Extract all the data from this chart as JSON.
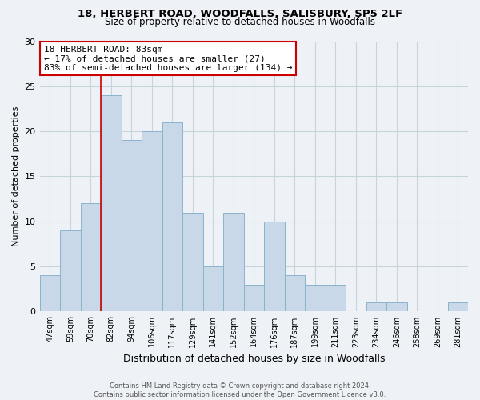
{
  "title1": "18, HERBERT ROAD, WOODFALLS, SALISBURY, SP5 2LF",
  "title2": "Size of property relative to detached houses in Woodfalls",
  "xlabel": "Distribution of detached houses by size in Woodfalls",
  "ylabel": "Number of detached properties",
  "footer1": "Contains HM Land Registry data © Crown copyright and database right 2024.",
  "footer2": "Contains public sector information licensed under the Open Government Licence v3.0.",
  "annotation_line1": "18 HERBERT ROAD: 83sqm",
  "annotation_line2": "← 17% of detached houses are smaller (27)",
  "annotation_line3": "83% of semi-detached houses are larger (134) →",
  "bar_labels": [
    "47sqm",
    "59sqm",
    "70sqm",
    "82sqm",
    "94sqm",
    "106sqm",
    "117sqm",
    "129sqm",
    "141sqm",
    "152sqm",
    "164sqm",
    "176sqm",
    "187sqm",
    "199sqm",
    "211sqm",
    "223sqm",
    "234sqm",
    "246sqm",
    "258sqm",
    "269sqm",
    "281sqm"
  ],
  "bar_values": [
    4,
    9,
    12,
    24,
    19,
    20,
    21,
    11,
    5,
    11,
    3,
    10,
    4,
    3,
    3,
    0,
    1,
    1,
    0,
    0,
    1
  ],
  "bar_color": "#c8d8e8",
  "bar_edge_color": "#8ab4cc",
  "ylim": [
    0,
    30
  ],
  "yticks": [
    0,
    5,
    10,
    15,
    20,
    25,
    30
  ],
  "grid_color": "#c8d4dc",
  "annotation_box_facecolor": "#ffffff",
  "annotation_box_edgecolor": "#cc0000",
  "red_line_bar_index": 3,
  "bg_color": "#eef2f6",
  "title1_fontsize": 9.5,
  "title2_fontsize": 8.5,
  "ylabel_fontsize": 8,
  "xlabel_fontsize": 9,
  "tick_fontsize": 7,
  "annotation_fontsize": 8,
  "footer_fontsize": 6
}
